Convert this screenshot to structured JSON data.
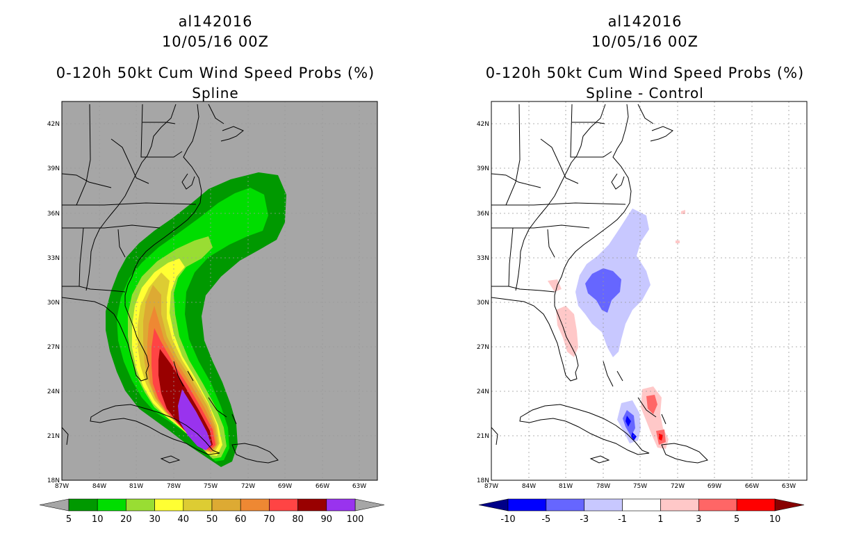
{
  "left_panel": {
    "storm": "al142016",
    "datetime": "10/05/16 00Z",
    "product": "0-120h 50kt Cum Wind Speed Probs (%)",
    "subtitle": "Spline",
    "background_color": "#a6a6a6",
    "colorbar": {
      "colors": [
        "#009900",
        "#00dd00",
        "#99dd33",
        "#ffff33",
        "#ddcc33",
        "#ddaa33",
        "#ee8833",
        "#ff4444",
        "#990000",
        "#9933ee"
      ],
      "labels": [
        "5",
        "10",
        "20",
        "30",
        "40",
        "50",
        "60",
        "70",
        "80",
        "90",
        "100"
      ]
    }
  },
  "right_panel": {
    "storm": "al142016",
    "datetime": "10/05/16 00Z",
    "product": "0-120h 50kt Cum Wind Speed Probs (%)",
    "subtitle": "Spline - Control",
    "background_color": "#ffffff",
    "colorbar": {
      "colors": [
        "#0000ff",
        "#6666ff",
        "#c8c8ff",
        "#ffffff",
        "#ffc8c8",
        "#ff6666",
        "#ff0000"
      ],
      "labels": [
        "-10",
        "-5",
        "-3",
        "-1",
        "1",
        "3",
        "5",
        "10"
      ],
      "end_low": "#000088",
      "end_high": "#880000"
    }
  },
  "map_axes": {
    "lat_labels": [
      "42N",
      "39N",
      "36N",
      "33N",
      "30N",
      "27N",
      "24N",
      "21N",
      "18N"
    ],
    "lon_labels": [
      "87W",
      "84W",
      "81W",
      "78W",
      "75W",
      "72W",
      "69W",
      "66W",
      "63W"
    ]
  }
}
